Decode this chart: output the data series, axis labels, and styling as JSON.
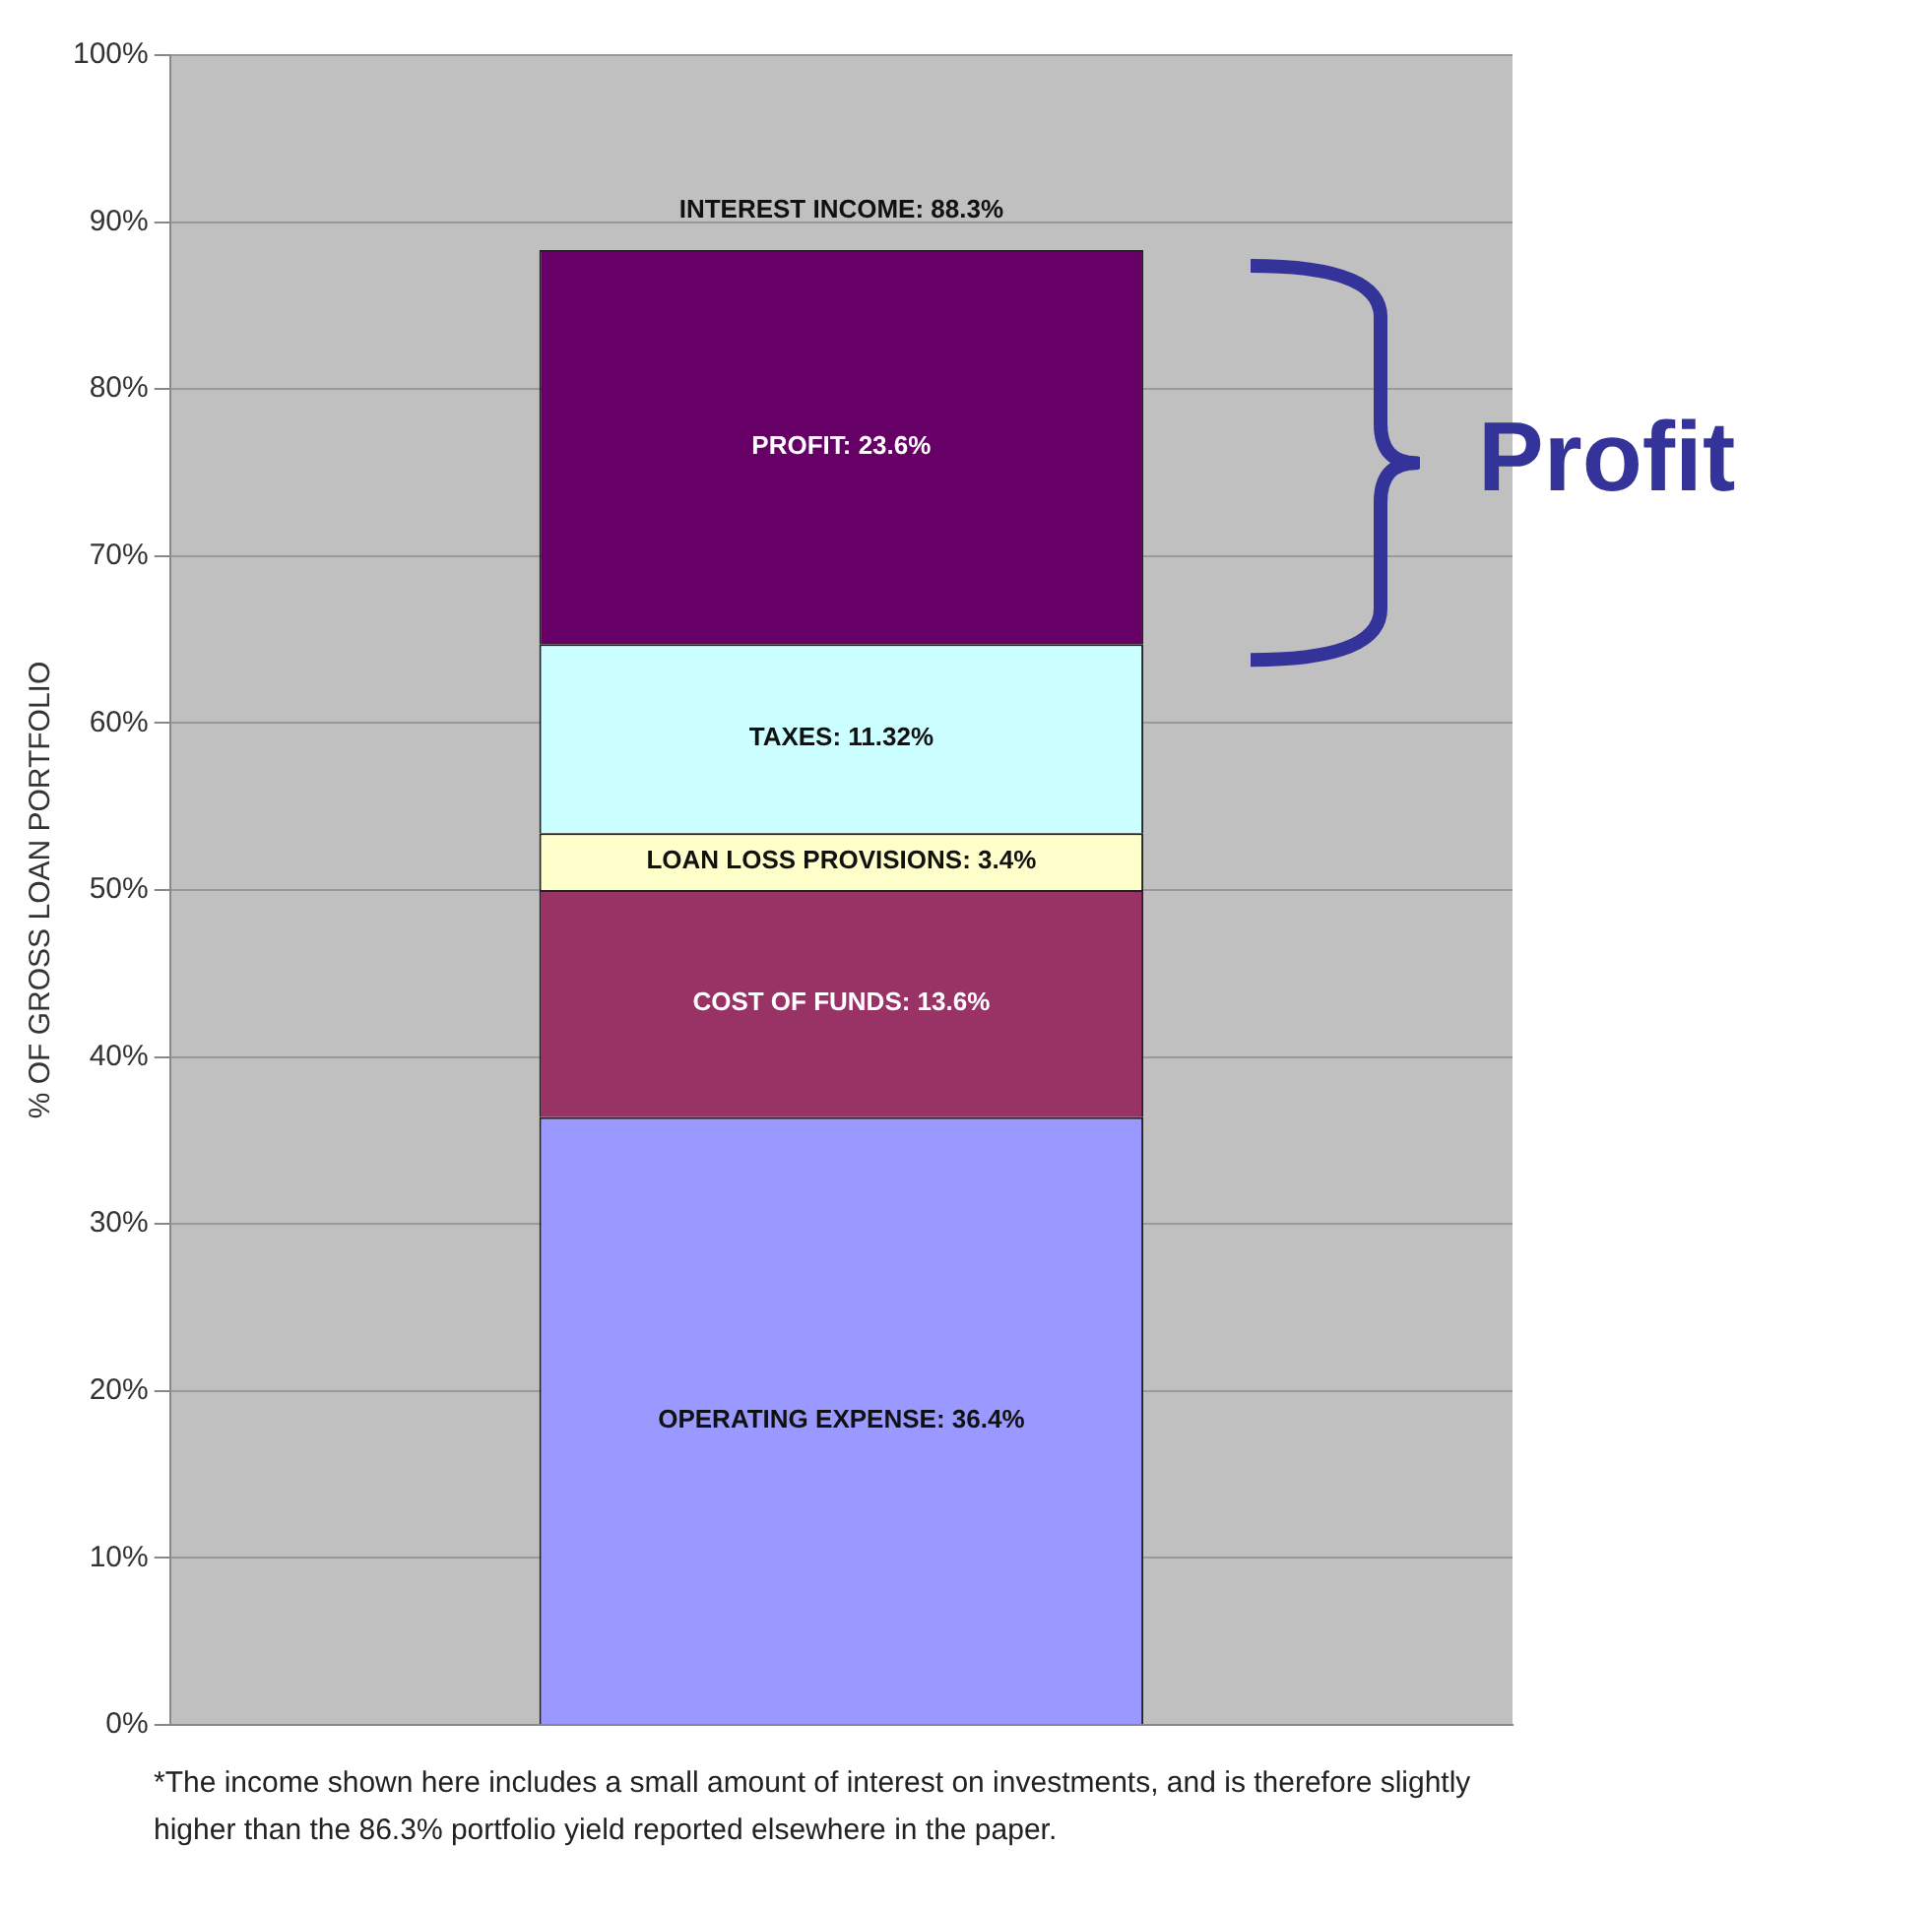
{
  "chart_data": {
    "type": "bar",
    "stacked": true,
    "ylabel": "% OF GROSS LOAN PORTFOLIO",
    "categories": [
      null
    ],
    "series": [
      {
        "color": "#9999ff",
        "values": [
          36.4
        ],
        "value_labels": [
          "OPERATING EXPENSE: 36.4%"
        ]
      },
      {
        "color": "#993366",
        "values": [
          13.6
        ],
        "value_labels": [
          "COST OF FUNDS: 13.6%"
        ]
      },
      {
        "color": "#ffffcc",
        "values": [
          3.4
        ],
        "value_labels": [
          "LOAN LOSS PROVISIONS: 3.4%"
        ]
      },
      {
        "color": "#ccffff",
        "values": [
          11.32
        ],
        "value_labels": [
          "TAXES: 11.32%"
        ]
      },
      {
        "color": "#660066",
        "values": [
          23.6
        ],
        "value_labels": [
          "PROFIT: 23.6%"
        ]
      }
    ],
    "totals": [
      "INTEREST INCOME: 88.3%"
    ],
    "ylim": [
      0,
      100
    ],
    "yticks": [
      {
        "value": 0,
        "label": "0%"
      },
      {
        "value": 10,
        "label": "10%"
      },
      {
        "value": 20,
        "label": "20%"
      },
      {
        "value": 30,
        "label": "30%"
      },
      {
        "value": 40,
        "label": "40%"
      },
      {
        "value": 50,
        "label": "50%"
      },
      {
        "value": 60,
        "label": "60%"
      },
      {
        "value": 70,
        "label": "70%"
      },
      {
        "value": 80,
        "label": "80%"
      },
      {
        "value": 90,
        "label": "90%"
      },
      {
        "value": 100,
        "label": "100%"
      }
    ],
    "grid": "y",
    "legend": false,
    "annotations": [
      "Profit",
      "*The income shown here includes a small amount of interest on investments, and is therefore slightly higher than the 86.3% portfolio yield reported elsewhere in the paper."
    ]
  }
}
